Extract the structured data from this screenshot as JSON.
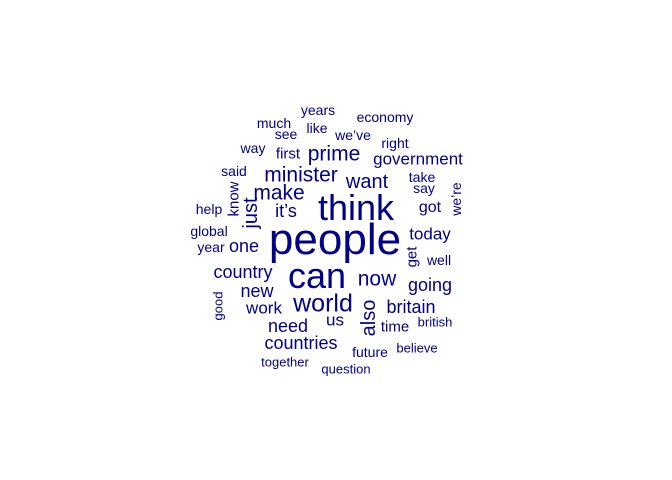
{
  "color": "#00008B",
  "words": [
    {
      "text": "people",
      "size": 44
    },
    {
      "text": "think",
      "size": 36
    },
    {
      "text": "can",
      "size": 36
    },
    {
      "text": "world",
      "size": 25
    },
    {
      "text": "minister",
      "size": 21
    },
    {
      "text": "make",
      "size": 21
    },
    {
      "text": "now",
      "size": 21
    },
    {
      "text": "prime",
      "size": 21
    },
    {
      "text": "want",
      "size": 20
    },
    {
      "text": "just",
      "size": 20
    },
    {
      "text": "also",
      "size": 20
    },
    {
      "text": "countries",
      "size": 18
    },
    {
      "text": "country",
      "size": 18
    },
    {
      "text": "going",
      "size": 18
    },
    {
      "text": "britain",
      "size": 18
    },
    {
      "text": "need",
      "size": 18
    },
    {
      "text": "new",
      "size": 18
    },
    {
      "text": "one",
      "size": 18
    },
    {
      "text": "it’s",
      "size": 18
    },
    {
      "text": "today",
      "size": 17
    },
    {
      "text": "government",
      "size": 17
    },
    {
      "text": "work",
      "size": 17
    },
    {
      "text": "us",
      "size": 17
    },
    {
      "text": "got",
      "size": 16
    },
    {
      "text": "get",
      "size": 15
    },
    {
      "text": "know",
      "size": 15
    },
    {
      "text": "first",
      "size": 15
    },
    {
      "text": "time",
      "size": 15
    },
    {
      "text": "future",
      "size": 14
    },
    {
      "text": "say",
      "size": 14
    },
    {
      "text": "right",
      "size": 14
    },
    {
      "text": "economy",
      "size": 14
    },
    {
      "text": "we’ve",
      "size": 14
    },
    {
      "text": "years",
      "size": 14
    },
    {
      "text": "like",
      "size": 14
    },
    {
      "text": "see",
      "size": 14
    },
    {
      "text": "much",
      "size": 14
    },
    {
      "text": "way",
      "size": 14
    },
    {
      "text": "said",
      "size": 14
    },
    {
      "text": "help",
      "size": 14
    },
    {
      "text": "global",
      "size": 14
    },
    {
      "text": "year",
      "size": 14
    },
    {
      "text": "take",
      "size": 14
    },
    {
      "text": "well",
      "size": 14
    },
    {
      "text": "we’re",
      "size": 14
    },
    {
      "text": "good",
      "size": 13
    },
    {
      "text": "british",
      "size": 13
    },
    {
      "text": "believe",
      "size": 13
    },
    {
      "text": "together",
      "size": 13
    },
    {
      "text": "question",
      "size": 13
    }
  ]
}
